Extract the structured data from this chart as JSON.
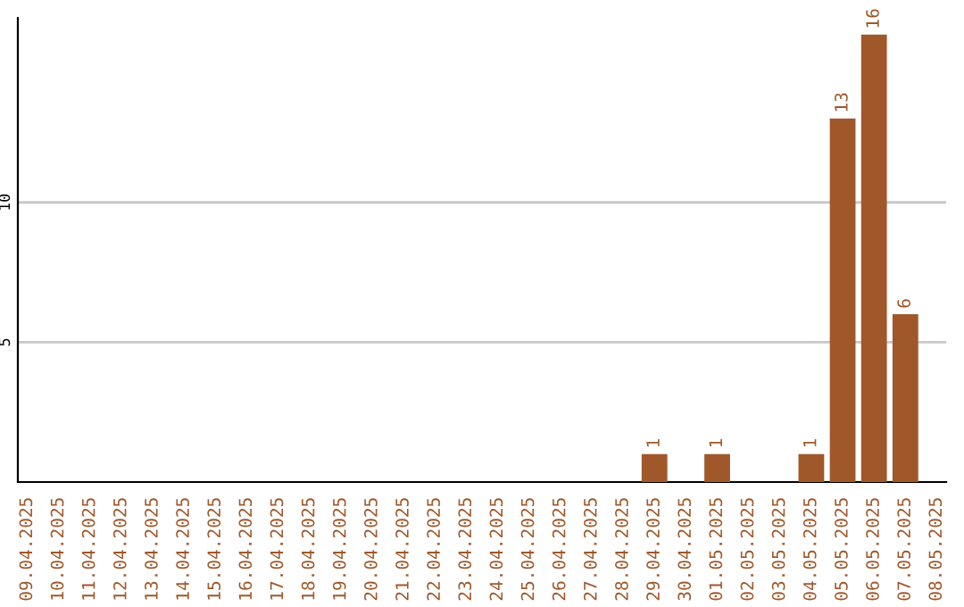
{
  "chart_data": {
    "type": "bar",
    "categories": [
      "09.04.2025",
      "10.04.2025",
      "11.04.2025",
      "12.04.2025",
      "13.04.2025",
      "14.04.2025",
      "15.04.2025",
      "16.04.2025",
      "17.04.2025",
      "18.04.2025",
      "19.04.2025",
      "20.04.2025",
      "21.04.2025",
      "22.04.2025",
      "23.04.2025",
      "24.04.2025",
      "25.04.2025",
      "26.04.2025",
      "27.04.2025",
      "28.04.2025",
      "29.04.2025",
      "30.04.2025",
      "01.05.2025",
      "02.05.2025",
      "03.05.2025",
      "04.05.2025",
      "05.05.2025",
      "06.05.2025",
      "07.05.2025",
      "08.05.2025"
    ],
    "values": [
      0,
      0,
      0,
      0,
      0,
      0,
      0,
      0,
      0,
      0,
      0,
      0,
      0,
      0,
      0,
      0,
      0,
      0,
      0,
      0,
      1,
      0,
      1,
      0,
      0,
      1,
      13,
      16,
      6,
      0
    ],
    "value_labels": [
      null,
      null,
      null,
      null,
      null,
      null,
      null,
      null,
      null,
      null,
      null,
      null,
      null,
      null,
      null,
      null,
      null,
      null,
      null,
      null,
      "1",
      null,
      "1",
      null,
      null,
      "1",
      "13",
      "16",
      "6",
      null
    ],
    "color": "#a0582a",
    "ylim": [
      0,
      16.6
    ],
    "yticks": [
      5,
      10
    ],
    "grid": "y"
  }
}
